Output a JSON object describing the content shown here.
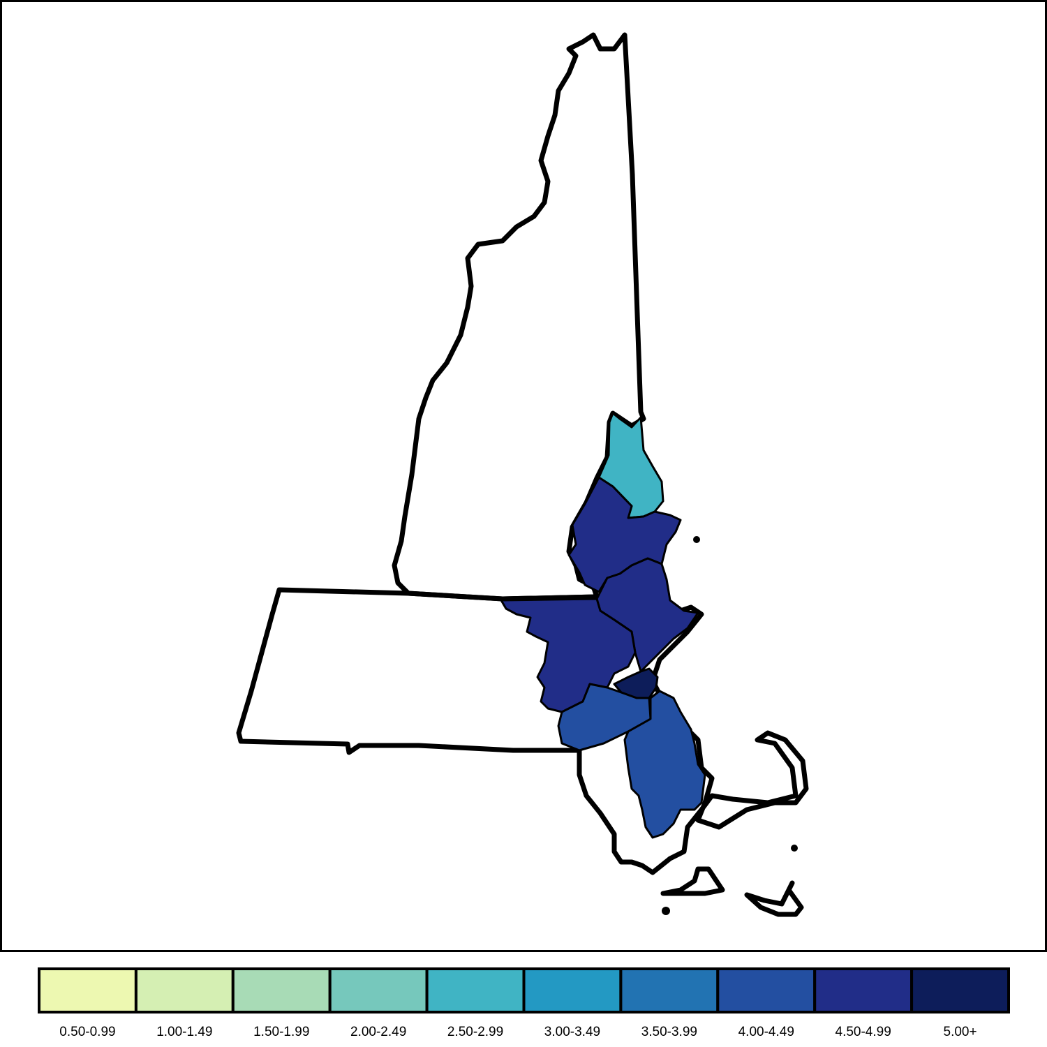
{
  "legend": {
    "bins": [
      {
        "label": "0.50-0.99",
        "color": "#EDF8B1"
      },
      {
        "label": "1.00-1.49",
        "color": "#D5EFB3"
      },
      {
        "label": "1.50-1.99",
        "color": "#A8DBB6"
      },
      {
        "label": "2.00-2.49",
        "color": "#76C8BC"
      },
      {
        "label": "2.50-2.99",
        "color": "#40B4C4"
      },
      {
        "label": "3.00-3.49",
        "color": "#2399C3"
      },
      {
        "label": "3.50-3.99",
        "color": "#2273B2"
      },
      {
        "label": "4.00-4.49",
        "color": "#234FA1"
      },
      {
        "label": "4.50-4.99",
        "color": "#212D88"
      },
      {
        "label": "5.00+",
        "color": "#0D1D5A"
      }
    ]
  },
  "regions": [
    {
      "id": "region-north",
      "bin": 4
    },
    {
      "id": "region-ne-a",
      "bin": 8
    },
    {
      "id": "region-ne-b",
      "bin": 8
    },
    {
      "id": "region-west",
      "bin": 8
    },
    {
      "id": "region-core",
      "bin": 9
    },
    {
      "id": "region-sw",
      "bin": 7
    },
    {
      "id": "region-south",
      "bin": 7
    }
  ],
  "colors": {
    "outline": "#000000",
    "background": "#FFFFFF",
    "unshaded": "#FFFFFF"
  }
}
